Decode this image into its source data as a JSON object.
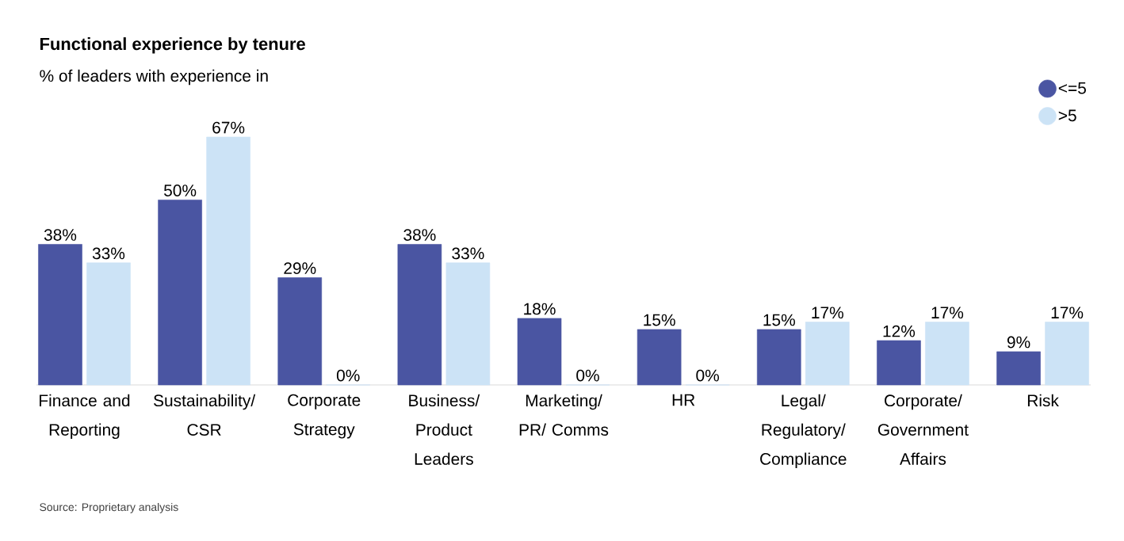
{
  "chart_data": {
    "type": "bar",
    "title": "Functional experience by tenure",
    "subtitle": "% of leaders with experience in",
    "categories": [
      "Finance and Reporting",
      "Sustainability/ CSR",
      "Corporate Strategy",
      "Business/ Product Leaders",
      "Marketing/ PR/ Comms",
      "HR",
      "Legal/ Regulatory/ Compliance",
      "Corporate/ Government Affairs",
      "Risk"
    ],
    "series": [
      {
        "name": "<=5",
        "color": "#4a55a2",
        "values": [
          38,
          50,
          29,
          38,
          18,
          15,
          15,
          12,
          9
        ],
        "value_labels": [
          "38%",
          "50%",
          "29%",
          "38%",
          "18%",
          "15%",
          "15%",
          "12%",
          "9%"
        ]
      },
      {
        "name": ">5",
        "color": "#cce3f6",
        "values": [
          33,
          67,
          0,
          33,
          0,
          0,
          17,
          17,
          17
        ],
        "value_labels": [
          "33%",
          "67%",
          "0%",
          "33%",
          "0%",
          "0%",
          "17%",
          "17%",
          "17%"
        ]
      }
    ],
    "legend": "top right",
    "annotations": [
      "Source: Proprietary analysis"
    ]
  }
}
